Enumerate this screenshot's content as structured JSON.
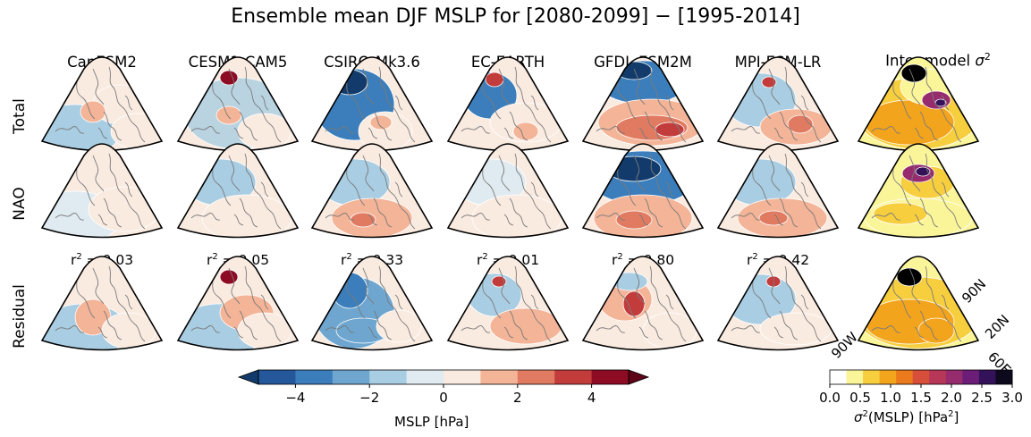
{
  "title": "Ensemble mean DJF MSLP for [2080-2099] − [1995-2014]",
  "columns": [
    "CanESM2",
    "CESM1-CAM5",
    "CSIRO-Mk3.6",
    "EC-EARTH",
    "GFDL-ESM2M",
    "MPI-ESM-LR"
  ],
  "variance_column": {
    "prefix": "Inter-model ",
    "symbol": "σ",
    "exponent": "2"
  },
  "rows": [
    "Total",
    "NAO",
    "Residual"
  ],
  "r_squared": {
    "prefix": "r",
    "exponent": "2",
    "values": [
      "= 0.03",
      "= 0.05",
      "= 0.33",
      "= 0.01",
      "= 0.80",
      "= 0.42"
    ]
  },
  "map_labels": {
    "lon_west": "90W",
    "lat_north": "90N",
    "lat_mid": "20N",
    "lon_east": "60E"
  },
  "mslp_colorbar": {
    "label": "MSLP [hPa]",
    "ticks": [
      "−4",
      "−2",
      "0",
      "2",
      "4"
    ],
    "tick_values": [
      -4,
      -2,
      0,
      2,
      4
    ],
    "range": [
      -5,
      5
    ],
    "colors": [
      "#24589a",
      "#3b7ebb",
      "#6ea6cf",
      "#a9cde2",
      "#e0ebf1",
      "#faebe1",
      "#f4b497",
      "#e07b62",
      "#c33c3c",
      "#8e0b24"
    ],
    "under_color": "#123b6b",
    "over_color": "#5e0518"
  },
  "variance_colorbar": {
    "label_symbol": "σ",
    "label_exponent": "2",
    "label_text": "(MSLP) [hPa",
    "label_unit_exponent": "2",
    "label_close": "]",
    "ticks": [
      "0.0",
      "0.5",
      "1.0",
      "1.5",
      "2.0",
      "2.5",
      "3.0"
    ],
    "range": [
      0,
      3
    ],
    "colors": [
      "#ffffff",
      "#fbf59a",
      "#f7ce3e",
      "#f3a41d",
      "#ea7a1c",
      "#d74e3a",
      "#b73758",
      "#962b6d",
      "#6b1d78",
      "#33125a",
      "#0e0a1e"
    ]
  }
}
